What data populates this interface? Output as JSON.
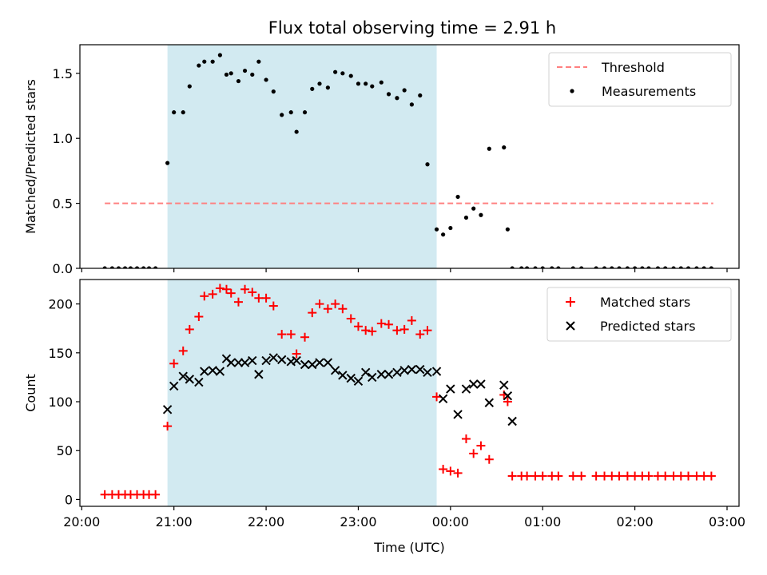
{
  "title": "Flux total observing time = 2.91 h",
  "chart_data": [
    {
      "type": "scatter",
      "panel": "top",
      "ylabel": "Matched/Predicted stars",
      "ylim": [
        0,
        1.72
      ],
      "yticks": [
        "0.0",
        "0.5",
        "1.0",
        "1.5"
      ],
      "ytick_values": [
        0,
        0.5,
        1.0,
        1.5
      ],
      "x_unit": "hours after 20:00 UTC",
      "xlim": [
        -0.02,
        7.13
      ],
      "shaded_interval": [
        0.93,
        3.85
      ],
      "shade_color": "#add8e6",
      "legend_position": "top-right",
      "legend": [
        {
          "label": "Threshold",
          "marker": "dashed-line",
          "color": "#ff8080"
        },
        {
          "label": "Measurements",
          "marker": "dot",
          "color": "#000000"
        }
      ],
      "threshold": {
        "value": 0.5,
        "x_range": [
          0.25,
          6.85
        ],
        "color": "#ff8080"
      },
      "series": [
        {
          "name": "Measurements",
          "color": "#000000",
          "x": [
            0.25,
            0.33,
            0.4,
            0.47,
            0.53,
            0.6,
            0.67,
            0.73,
            0.8,
            0.93,
            1.0,
            1.1,
            1.17,
            1.27,
            1.33,
            1.42,
            1.5,
            1.57,
            1.62,
            1.7,
            1.77,
            1.85,
            1.92,
            2.0,
            2.08,
            2.17,
            2.27,
            2.33,
            2.42,
            2.5,
            2.58,
            2.67,
            2.75,
            2.83,
            2.92,
            3.0,
            3.08,
            3.15,
            3.25,
            3.33,
            3.42,
            3.5,
            3.58,
            3.67,
            3.75,
            3.85,
            3.92,
            4.0,
            4.08,
            4.17,
            4.25,
            4.33,
            4.42,
            4.58,
            4.62,
            4.67,
            4.77,
            4.83,
            4.92,
            5.0,
            5.1,
            5.17,
            5.33,
            5.42,
            5.58,
            5.67,
            5.75,
            5.83,
            5.92,
            6.0,
            6.08,
            6.15,
            6.25,
            6.33,
            6.42,
            6.5,
            6.58,
            6.67,
            6.75,
            6.83
          ],
          "y": [
            0,
            0,
            0,
            0,
            0,
            0,
            0,
            0,
            0,
            0.81,
            1.2,
            1.2,
            1.4,
            1.56,
            1.59,
            1.59,
            1.64,
            1.49,
            1.5,
            1.44,
            1.52,
            1.49,
            1.59,
            1.45,
            1.36,
            1.18,
            1.2,
            1.05,
            1.2,
            1.38,
            1.42,
            1.39,
            1.51,
            1.5,
            1.48,
            1.42,
            1.42,
            1.4,
            1.43,
            1.34,
            1.31,
            1.37,
            1.26,
            1.33,
            0.8,
            0.3,
            0.26,
            0.31,
            0.55,
            0.39,
            0.46,
            0.41,
            0.92,
            0.93,
            0.3,
            0,
            0,
            0,
            0,
            0,
            0,
            0,
            0,
            0,
            0,
            0,
            0,
            0,
            0,
            0,
            0,
            0,
            0,
            0,
            0,
            0,
            0,
            0,
            0,
            0
          ]
        }
      ]
    },
    {
      "type": "scatter",
      "panel": "bottom",
      "ylabel": "Count",
      "xlabel": "Time (UTC)",
      "ylim": [
        -7,
        225
      ],
      "yticks": [
        "0",
        "50",
        "100",
        "150",
        "200"
      ],
      "ytick_values": [
        0,
        50,
        100,
        150,
        200
      ],
      "x_unit": "hours after 20:00 UTC",
      "xlim": [
        -0.02,
        7.13
      ],
      "xticks": [
        "20:00",
        "21:00",
        "22:00",
        "23:00",
        "00:00",
        "01:00",
        "02:00",
        "03:00"
      ],
      "xtick_values": [
        0,
        1,
        2,
        3,
        4,
        5,
        6,
        7
      ],
      "shaded_interval": [
        0.93,
        3.85
      ],
      "shade_color": "#add8e6",
      "legend_position": "top-right",
      "legend": [
        {
          "label": "Matched stars",
          "marker": "plus",
          "color": "#ff0000"
        },
        {
          "label": "Predicted stars",
          "marker": "x",
          "color": "#000000"
        }
      ],
      "series": [
        {
          "name": "Matched stars",
          "marker": "plus",
          "color": "#ff0000",
          "x": [
            0.25,
            0.33,
            0.4,
            0.47,
            0.53,
            0.6,
            0.67,
            0.73,
            0.8,
            0.93,
            1.0,
            1.1,
            1.17,
            1.27,
            1.33,
            1.42,
            1.5,
            1.57,
            1.62,
            1.7,
            1.77,
            1.85,
            1.92,
            2.0,
            2.08,
            2.17,
            2.27,
            2.33,
            2.42,
            2.5,
            2.58,
            2.67,
            2.75,
            2.83,
            2.92,
            3.0,
            3.08,
            3.15,
            3.25,
            3.33,
            3.42,
            3.5,
            3.58,
            3.67,
            3.75,
            3.85,
            3.92,
            4.0,
            4.08,
            4.17,
            4.25,
            4.33,
            4.42,
            4.58,
            4.62,
            4.67,
            4.77,
            4.83,
            4.92,
            5.0,
            5.1,
            5.17,
            5.33,
            5.42,
            5.58,
            5.67,
            5.75,
            5.83,
            5.92,
            6.0,
            6.08,
            6.15,
            6.25,
            6.33,
            6.42,
            6.5,
            6.58,
            6.67,
            6.75,
            6.83
          ],
          "y": [
            5,
            5,
            5,
            5,
            5,
            5,
            5,
            5,
            5,
            75,
            139,
            152,
            174,
            187,
            208,
            210,
            216,
            215,
            211,
            202,
            215,
            212,
            206,
            206,
            198,
            169,
            169,
            149,
            166,
            191,
            200,
            195,
            200,
            195,
            185,
            177,
            173,
            172,
            180,
            179,
            173,
            174,
            183,
            169,
            173,
            105,
            31,
            29,
            27,
            62,
            47,
            55,
            41,
            107,
            100,
            24,
            24,
            24,
            24,
            24,
            24,
            24,
            24,
            24,
            24,
            24,
            24,
            24,
            24,
            24,
            24,
            24,
            24,
            24,
            24,
            24,
            24,
            24,
            24,
            24
          ]
        },
        {
          "name": "Predicted stars",
          "marker": "x",
          "color": "#000000",
          "x": [
            0.93,
            1.0,
            1.1,
            1.17,
            1.27,
            1.33,
            1.42,
            1.5,
            1.57,
            1.62,
            1.7,
            1.77,
            1.85,
            1.92,
            2.0,
            2.08,
            2.17,
            2.27,
            2.33,
            2.42,
            2.5,
            2.58,
            2.67,
            2.75,
            2.83,
            2.92,
            3.0,
            3.08,
            3.15,
            3.25,
            3.33,
            3.42,
            3.5,
            3.58,
            3.67,
            3.75,
            3.85,
            3.92,
            4.0,
            4.08,
            4.17,
            4.25,
            4.33,
            4.42,
            4.58,
            4.62,
            4.67
          ],
          "y": [
            92,
            116,
            126,
            123,
            120,
            131,
            132,
            131,
            144,
            140,
            140,
            140,
            142,
            128,
            142,
            145,
            143,
            141,
            142,
            138,
            138,
            140,
            140,
            132,
            127,
            124,
            121,
            130,
            125,
            128,
            128,
            130,
            132,
            133,
            133,
            130,
            131,
            103,
            113,
            87,
            113,
            118,
            118,
            99,
            117,
            106,
            80
          ]
        }
      ]
    }
  ]
}
